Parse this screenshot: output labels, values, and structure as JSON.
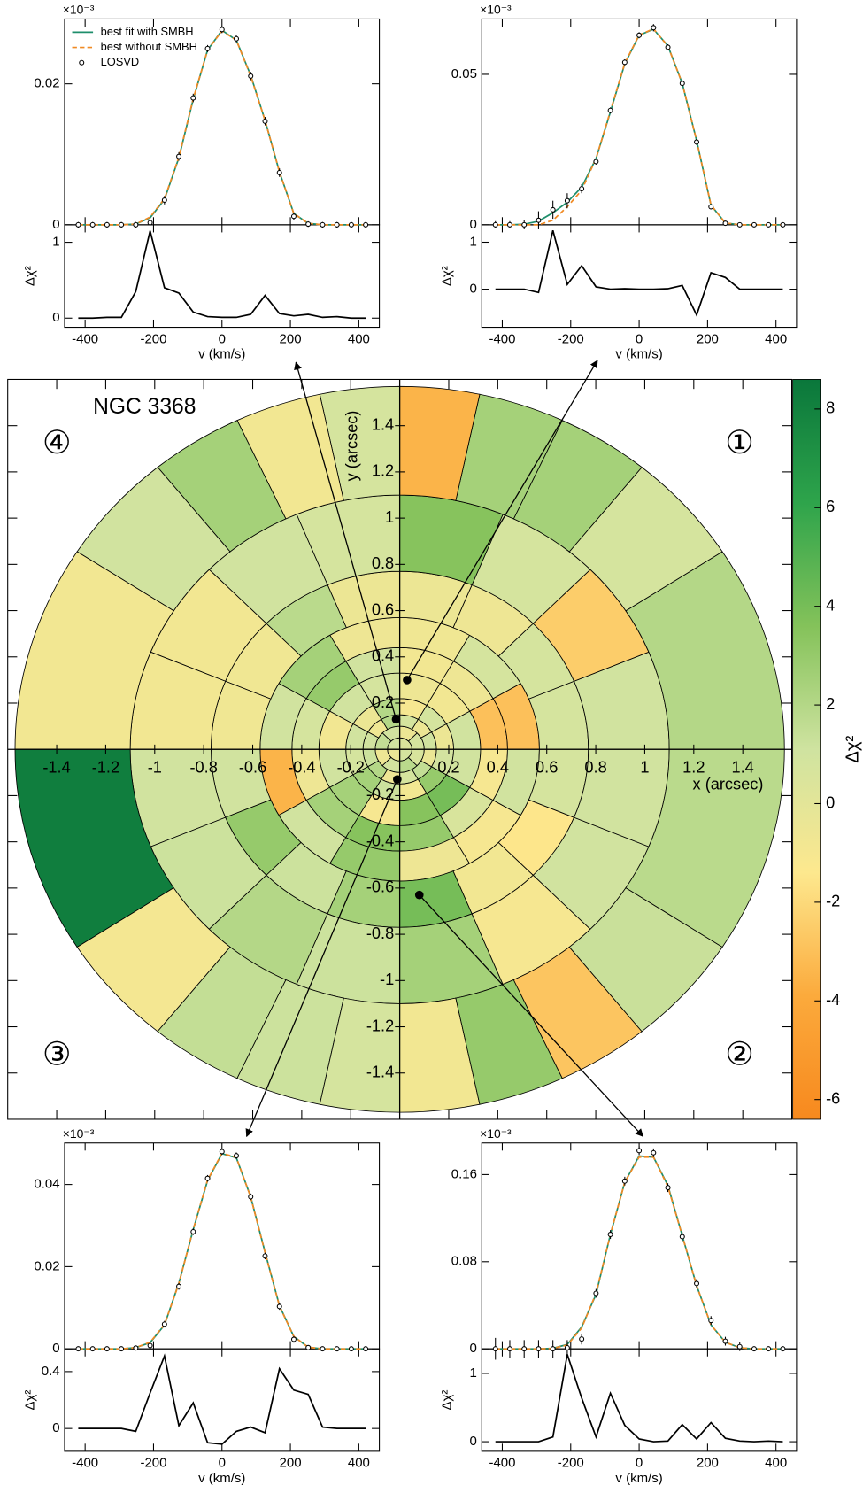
{
  "chart_data": [
    {
      "type": "polar-map",
      "title": "NGC 3368",
      "xlabel": "x (arcsec)",
      "ylabel": "y (arcsec)",
      "colorbar_label": "Δχ²",
      "quadrant_labels": [
        "①",
        "②",
        "③",
        "④"
      ],
      "xlim": [
        -1.6,
        1.6
      ],
      "ylim": [
        -1.6,
        1.6
      ],
      "xticks": [
        -1.4,
        -1.2,
        -1,
        -0.8,
        -0.6,
        -0.4,
        -0.2,
        0.2,
        0.4,
        0.6,
        0.8,
        1,
        1.2,
        1.4
      ],
      "yticks": [
        -1.4,
        -1.2,
        -1,
        -0.8,
        -0.6,
        -0.4,
        -0.2,
        0.2,
        0.4,
        0.6,
        0.8,
        1,
        1.2,
        1.4
      ],
      "clim": [
        -6.4,
        8.6
      ],
      "cticks": [
        -6,
        -4,
        -2,
        0,
        2,
        4,
        6,
        8
      ],
      "colors": [
        "#f7891e",
        "#fbaa3c",
        "#fde88e",
        "#cfe3a0",
        "#84c25a",
        "#2ea44b",
        "#0a773b"
      ],
      "rings": [
        {
          "r": [
            0,
            0.05
          ],
          "theta": [
            0,
            90,
            180,
            270,
            360
          ],
          "values": [
            0.5,
            1.0,
            -0.4,
            0.8
          ]
        },
        {
          "r": [
            0.05,
            0.1
          ],
          "theta": [
            0,
            45,
            90,
            135,
            180,
            225,
            270,
            315,
            360
          ],
          "values": [
            0.8,
            -0.5,
            1.0,
            1.5,
            -0.6,
            0.9,
            1.8,
            0.6
          ]
        },
        {
          "r": [
            0.1,
            0.15
          ],
          "theta": [
            0,
            30,
            60,
            90,
            120,
            150,
            180,
            210,
            240,
            270,
            300,
            330,
            360
          ],
          "values": [
            1.0,
            -0.5,
            0.8,
            2.0,
            -0.7,
            1.0,
            1.2,
            2.0,
            -0.6,
            0.8,
            1.5,
            -0.4
          ]
        },
        {
          "r": [
            0.15,
            0.22
          ],
          "theta": [
            0,
            30,
            60,
            90,
            120,
            150,
            180,
            210,
            240,
            270,
            300,
            330,
            360
          ],
          "values": [
            -0.5,
            0.8,
            -1.0,
            2.0,
            -0.5,
            1.0,
            0.8,
            2.5,
            1.2,
            -0.8,
            3.0,
            0.9
          ]
        },
        {
          "r": [
            0.22,
            0.33
          ],
          "theta": [
            0,
            30,
            60,
            90,
            120,
            150,
            180,
            210,
            240,
            270,
            300,
            330,
            360
          ],
          "values": [
            1.0,
            -0.8,
            -0.6,
            0.8,
            1.0,
            -0.8,
            1.0,
            2.5,
            -1.0,
            3.5,
            4.0,
            1.0
          ]
        },
        {
          "r": [
            0.33,
            0.44
          ],
          "theta": [
            0,
            30,
            60,
            90,
            120,
            150,
            180,
            210,
            240,
            270,
            300,
            330,
            360
          ],
          "values": [
            -3.0,
            -0.6,
            -0.8,
            1.0,
            3.0,
            0.8,
            -0.6,
            2.5,
            3.5,
            3.0,
            0.6,
            -1.0
          ]
        },
        {
          "r": [
            0.44,
            0.57
          ],
          "theta": [
            0,
            30,
            60,
            90,
            120,
            150,
            180,
            210,
            240,
            270,
            300,
            330,
            360
          ],
          "values": [
            -3.0,
            0.8,
            -0.7,
            -0.6,
            2.5,
            1.0,
            -3.5,
            1.0,
            3.0,
            -0.6,
            -1.0,
            1.0
          ]
        },
        {
          "r": [
            0.57,
            0.77
          ],
          "theta": [
            0,
            22.5,
            45,
            67.5,
            90,
            112.5,
            135,
            157.5,
            180,
            202.5,
            225,
            247.5,
            270,
            292.5,
            315,
            337.5,
            360
          ],
          "values": [
            0.8,
            0.8,
            -0.6,
            -0.5,
            -0.5,
            1.8,
            -0.7,
            -0.7,
            1.0,
            3.0,
            1.2,
            2.5,
            4.0,
            -0.8,
            -1.5,
            0.8
          ]
        },
        {
          "r": [
            0.77,
            1.1
          ],
          "theta": [
            0,
            22.5,
            45,
            67.5,
            90,
            112.5,
            135,
            157.5,
            180,
            202.5,
            225,
            247.5,
            270,
            292.5,
            315,
            337.5,
            360
          ],
          "values": [
            1.0,
            -2.5,
            0.8,
            3.5,
            0.8,
            1.0,
            -0.8,
            -0.8,
            1.0,
            1.2,
            2.0,
            1.2,
            2.5,
            -1.0,
            1.0,
            1.0
          ]
        },
        {
          "r": [
            1.1,
            1.57
          ],
          "theta": [
            0,
            33,
            51,
            65,
            78,
            90,
            102,
            115,
            129,
            147,
            180,
            213,
            231,
            245,
            258,
            270,
            282,
            295,
            309,
            327,
            360
          ],
          "values": [
            2.0,
            0.8,
            2.5,
            2.5,
            -3.5,
            0.8,
            -0.8,
            2.5,
            1.0,
            -0.8,
            8.2,
            -0.9,
            1.5,
            1.2,
            0.8,
            -0.8,
            3.0,
            -2.8,
            1.3,
            1.8
          ]
        }
      ]
    },
    {
      "type": "losvd",
      "exponent_label": "×10⁻³",
      "xlabel": "v (km/s)",
      "bin": {
        "x": 0.03,
        "y": 0.3
      },
      "x": [
        -420,
        -378,
        -336,
        -294,
        -252,
        -210,
        -168,
        -126,
        -84,
        -42,
        0,
        42,
        84,
        126,
        168,
        210,
        252,
        294,
        336,
        378,
        420
      ],
      "xlim": [
        -460,
        460
      ],
      "xticks": [
        -400,
        -200,
        0,
        200,
        400
      ],
      "ylim": [
        0,
        0.0684
      ],
      "yticks": [
        0,
        0.05
      ],
      "series": [
        {
          "color": "#1e8e6b",
          "values": [
            0,
            0,
            0.0002,
            0.0012,
            0.004,
            0.0075,
            0.0125,
            0.022,
            0.0375,
            0.0535,
            0.063,
            0.065,
            0.0595,
            0.047,
            0.028,
            0.0065,
            0.0006,
            0,
            0,
            0,
            0
          ]
        },
        {
          "color": "#f08a24",
          "dash": true,
          "values": [
            0,
            0,
            0,
            0,
            0.0015,
            0.006,
            0.0115,
            0.022,
            0.0378,
            0.0537,
            0.0631,
            0.0651,
            0.0594,
            0.047,
            0.028,
            0.0066,
            0.0006,
            0,
            0,
            0,
            0
          ]
        },
        {
          "color": "#000000",
          "marker": "circle",
          "values": [
            0,
            0,
            0,
            0.0015,
            0.005,
            0.008,
            0.012,
            0.021,
            0.038,
            0.054,
            0.063,
            0.0655,
            0.059,
            0.047,
            0.0275,
            0.006,
            0.0005,
            0,
            0,
            0,
            0
          ],
          "errors": [
            0.0012,
            0.0012,
            0.0015,
            0.003,
            0.003,
            0.0025,
            0.0015,
            0.001,
            0.001,
            0.001,
            0.001,
            0.0012,
            0.001,
            0.001,
            0.001,
            0.0008,
            0.0008,
            0.0008,
            0.0008,
            0.0008,
            0.0008
          ]
        }
      ],
      "residual": {
        "ylabel": "Δχ²",
        "color": "#000000",
        "ylim": [
          -0.81,
          1.37
        ],
        "yticks": [
          0,
          1
        ],
        "values": [
          0,
          0,
          0,
          -0.07,
          1.25,
          0.1,
          0.5,
          0.05,
          0,
          0.01,
          0,
          0,
          0.01,
          0.08,
          -0.55,
          0.35,
          0.25,
          0,
          0,
          0,
          0
        ]
      }
    },
    {
      "type": "losvd",
      "exponent_label": "×10⁻³",
      "xlabel": "v (km/s)",
      "bin": {
        "x": 0.08,
        "y": -0.63
      },
      "x": [
        -420,
        -378,
        -336,
        -294,
        -252,
        -210,
        -168,
        -126,
        -84,
        -42,
        0,
        42,
        84,
        126,
        168,
        210,
        252,
        294,
        336,
        378,
        420
      ],
      "xlim": [
        -460,
        460
      ],
      "xticks": [
        -400,
        -200,
        0,
        200,
        400
      ],
      "ylim": [
        0,
        0.189
      ],
      "yticks": [
        0,
        0.08,
        0.16
      ],
      "series": [
        {
          "color": "#1e8e6b",
          "values": [
            0,
            0,
            0,
            0,
            0.0005,
            0.004,
            0.02,
            0.05,
            0.105,
            0.153,
            0.177,
            0.176,
            0.15,
            0.104,
            0.058,
            0.022,
            0.006,
            0.001,
            0,
            0,
            0
          ]
        },
        {
          "color": "#f08a24",
          "dash": true,
          "values": [
            0,
            0,
            0,
            0,
            0.0004,
            0.0035,
            0.019,
            0.051,
            0.105,
            0.153,
            0.176,
            0.176,
            0.149,
            0.104,
            0.058,
            0.022,
            0.006,
            0.001,
            0,
            0,
            0
          ]
        },
        {
          "color": "#000000",
          "marker": "circle",
          "values": [
            0,
            0,
            0,
            0,
            0,
            0.001,
            0.009,
            0.051,
            0.105,
            0.154,
            0.182,
            0.18,
            0.148,
            0.103,
            0.06,
            0.026,
            0.007,
            0.002,
            0,
            0,
            0
          ],
          "errors": [
            0.01,
            0.008,
            0.008,
            0.008,
            0.008,
            0.007,
            0.005,
            0.004,
            0.004,
            0.004,
            0.004,
            0.004,
            0.004,
            0.004,
            0.004,
            0.004,
            0.004,
            0.004,
            0.002,
            0.002,
            0.002
          ]
        }
      ],
      "residual": {
        "ylabel": "Δχ²",
        "color": "#000000",
        "ylim": [
          -0.14,
          1.36
        ],
        "yticks": [
          0,
          1
        ],
        "values": [
          0,
          0,
          0,
          0,
          0.07,
          1.28,
          0.64,
          0.07,
          0.71,
          0.24,
          0.04,
          0,
          0.01,
          0.25,
          0.04,
          0.28,
          0.05,
          0.01,
          0,
          0.01,
          0
        ]
      }
    },
    {
      "type": "losvd",
      "exponent_label": "×10⁻³",
      "xlabel": "v (km/s)",
      "bin": {
        "x": -0.01,
        "y": -0.13
      },
      "x": [
        -420,
        -378,
        -336,
        -294,
        -252,
        -210,
        -168,
        -126,
        -84,
        -42,
        0,
        42,
        84,
        126,
        168,
        210,
        252,
        294,
        336,
        378,
        420
      ],
      "xlim": [
        -460,
        460
      ],
      "xticks": [
        -400,
        -200,
        0,
        200,
        400
      ],
      "ylim": [
        0,
        0.0501
      ],
      "yticks": [
        0,
        0.02,
        0.04
      ],
      "series": [
        {
          "color": "#1e8e6b",
          "values": [
            0,
            0,
            0,
            0,
            0.0003,
            0.0015,
            0.0058,
            0.016,
            0.029,
            0.041,
            0.0475,
            0.0465,
            0.037,
            0.0235,
            0.0105,
            0.003,
            0.0004,
            0,
            0,
            0,
            0
          ]
        },
        {
          "color": "#f08a24",
          "dash": true,
          "values": [
            0,
            0,
            0,
            0,
            0.0003,
            0.0016,
            0.0059,
            0.0159,
            0.0291,
            0.0411,
            0.0476,
            0.0466,
            0.0369,
            0.0234,
            0.0104,
            0.003,
            0.0004,
            0,
            0,
            0,
            0
          ]
        },
        {
          "color": "#000000",
          "marker": "circle",
          "values": [
            0,
            0,
            0,
            0,
            0.0002,
            0.0008,
            0.006,
            0.0152,
            0.0285,
            0.0415,
            0.048,
            0.047,
            0.037,
            0.0226,
            0.0103,
            0.0023,
            0.0003,
            0,
            0,
            0,
            0
          ],
          "errors": [
            0.0004,
            0.0004,
            0.0004,
            0.0004,
            0.0004,
            0.0005,
            0.0008,
            0.0008,
            0.0008,
            0.0008,
            0.0008,
            0.0008,
            0.0008,
            0.0008,
            0.0008,
            0.0008,
            0.0005,
            0.0004,
            0.0004,
            0.0004,
            0.0004
          ]
        }
      ],
      "residual": {
        "ylabel": "Δχ²",
        "color": "#000000",
        "ylim": [
          -0.16,
          0.56
        ],
        "yticks": [
          0,
          0.4
        ],
        "values": [
          0,
          0,
          0,
          0,
          -0.02,
          0.25,
          0.51,
          0.02,
          0.18,
          -0.1,
          -0.11,
          -0.02,
          0.01,
          -0.03,
          0.42,
          0.27,
          0.24,
          0.01,
          0,
          0,
          0
        ]
      }
    },
    {
      "type": "losvd",
      "exponent_label": "×10⁻³",
      "xlabel": "v (km/s)",
      "bin": {
        "x": -0.015,
        "y": 0.13
      },
      "x": [
        -420,
        -378,
        -336,
        -294,
        -252,
        -210,
        -168,
        -126,
        -84,
        -42,
        0,
        42,
        84,
        126,
        168,
        210,
        252,
        294,
        336,
        378,
        420
      ],
      "xlim": [
        -460,
        460
      ],
      "xticks": [
        -400,
        -200,
        0,
        200,
        400
      ],
      "ylim": [
        0,
        0.0292
      ],
      "yticks": [
        0,
        0.02
      ],
      "series": [
        {
          "name": "best fit with SMBH",
          "color": "#1e8e6b",
          "values": [
            0,
            0,
            0,
            0,
            0.0001,
            0.001,
            0.0036,
            0.0095,
            0.0178,
            0.0248,
            0.0276,
            0.0262,
            0.0212,
            0.0148,
            0.0075,
            0.0016,
            0.0002,
            0,
            0,
            0,
            0
          ]
        },
        {
          "name": "best without SMBH",
          "color": "#f08a24",
          "dash": true,
          "values": [
            0,
            0,
            0,
            0,
            0.0001,
            0.0011,
            0.0037,
            0.0096,
            0.0179,
            0.0248,
            0.0275,
            0.0262,
            0.0211,
            0.0148,
            0.0075,
            0.0016,
            0.0002,
            0,
            0,
            0,
            0
          ]
        },
        {
          "name": "LOSVD",
          "color": "#000000",
          "marker": "circle",
          "values": [
            0,
            0,
            0,
            0,
            0,
            0.0003,
            0.0035,
            0.0097,
            0.018,
            0.025,
            0.0277,
            0.0264,
            0.0211,
            0.0147,
            0.0074,
            0.0012,
            0.0001,
            0,
            0,
            0,
            0
          ],
          "errors": [
            0.0004,
            0.0004,
            0.0004,
            0.0004,
            0.0004,
            0.0004,
            0.0006,
            0.0006,
            0.0006,
            0.0005,
            0.0005,
            0.0005,
            0.0006,
            0.0006,
            0.0006,
            0.0005,
            0.0004,
            0.0004,
            0.0004,
            0.0004,
            0.0004
          ]
        }
      ],
      "residual": {
        "ylabel": "Δχ²",
        "color": "#000000",
        "ylim": [
          -0.12,
          1.23
        ],
        "yticks": [
          0,
          1
        ],
        "values": [
          0,
          0,
          0.01,
          0.01,
          0.35,
          1.15,
          0.4,
          0.33,
          0.08,
          0.02,
          0.01,
          0.01,
          0.05,
          0.3,
          0.06,
          0.03,
          0.05,
          0.01,
          0.02,
          0,
          0
        ]
      }
    }
  ]
}
